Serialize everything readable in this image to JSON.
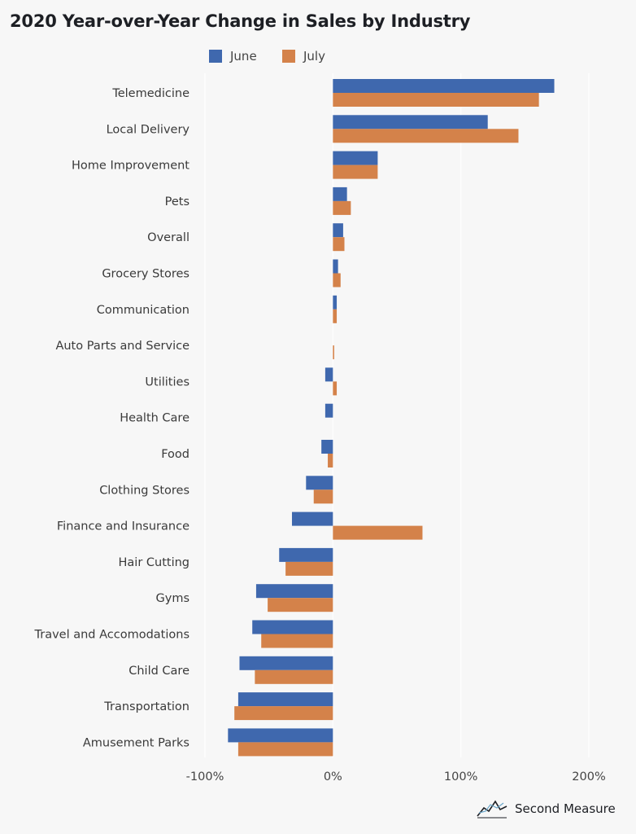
{
  "title": "2020 Year-over-Year Change in Sales by Industry",
  "legend": {
    "june": "June",
    "july": "July"
  },
  "brand": {
    "name": "Second Measure"
  },
  "colors": {
    "june": "#3f68ae",
    "july": "#d4824a"
  },
  "chart_data": {
    "type": "bar",
    "orientation": "horizontal",
    "title": "2020 Year-over-Year Change in Sales by Industry",
    "categories": [
      "Telemedicine",
      "Local Delivery",
      "Home Improvement",
      "Pets",
      "Overall",
      "Grocery Stores",
      "Communication",
      "Auto Parts and Service",
      "Utilities",
      "Health Care",
      "Food",
      "Clothing Stores",
      "Finance and Insurance",
      "Hair Cutting",
      "Gyms",
      "Travel and Accomodations",
      "Child Care",
      "Transportation",
      "Amusement Parks"
    ],
    "series": [
      {
        "name": "June",
        "values": [
          173,
          121,
          35,
          11,
          8,
          4,
          3,
          0,
          -6,
          -6,
          -9,
          -21,
          -32,
          -42,
          -60,
          -63,
          -73,
          -74,
          -82
        ]
      },
      {
        "name": "July",
        "values": [
          161,
          145,
          35,
          14,
          9,
          6,
          3,
          1,
          3,
          0,
          -4,
          -15,
          70,
          -37,
          -51,
          -56,
          -61,
          -77,
          -74
        ]
      }
    ],
    "xlim": [
      -100,
      200
    ],
    "xticks": [
      "-100%",
      "0%",
      "100%",
      "200%"
    ],
    "grid": true,
    "legend_position": "top"
  }
}
